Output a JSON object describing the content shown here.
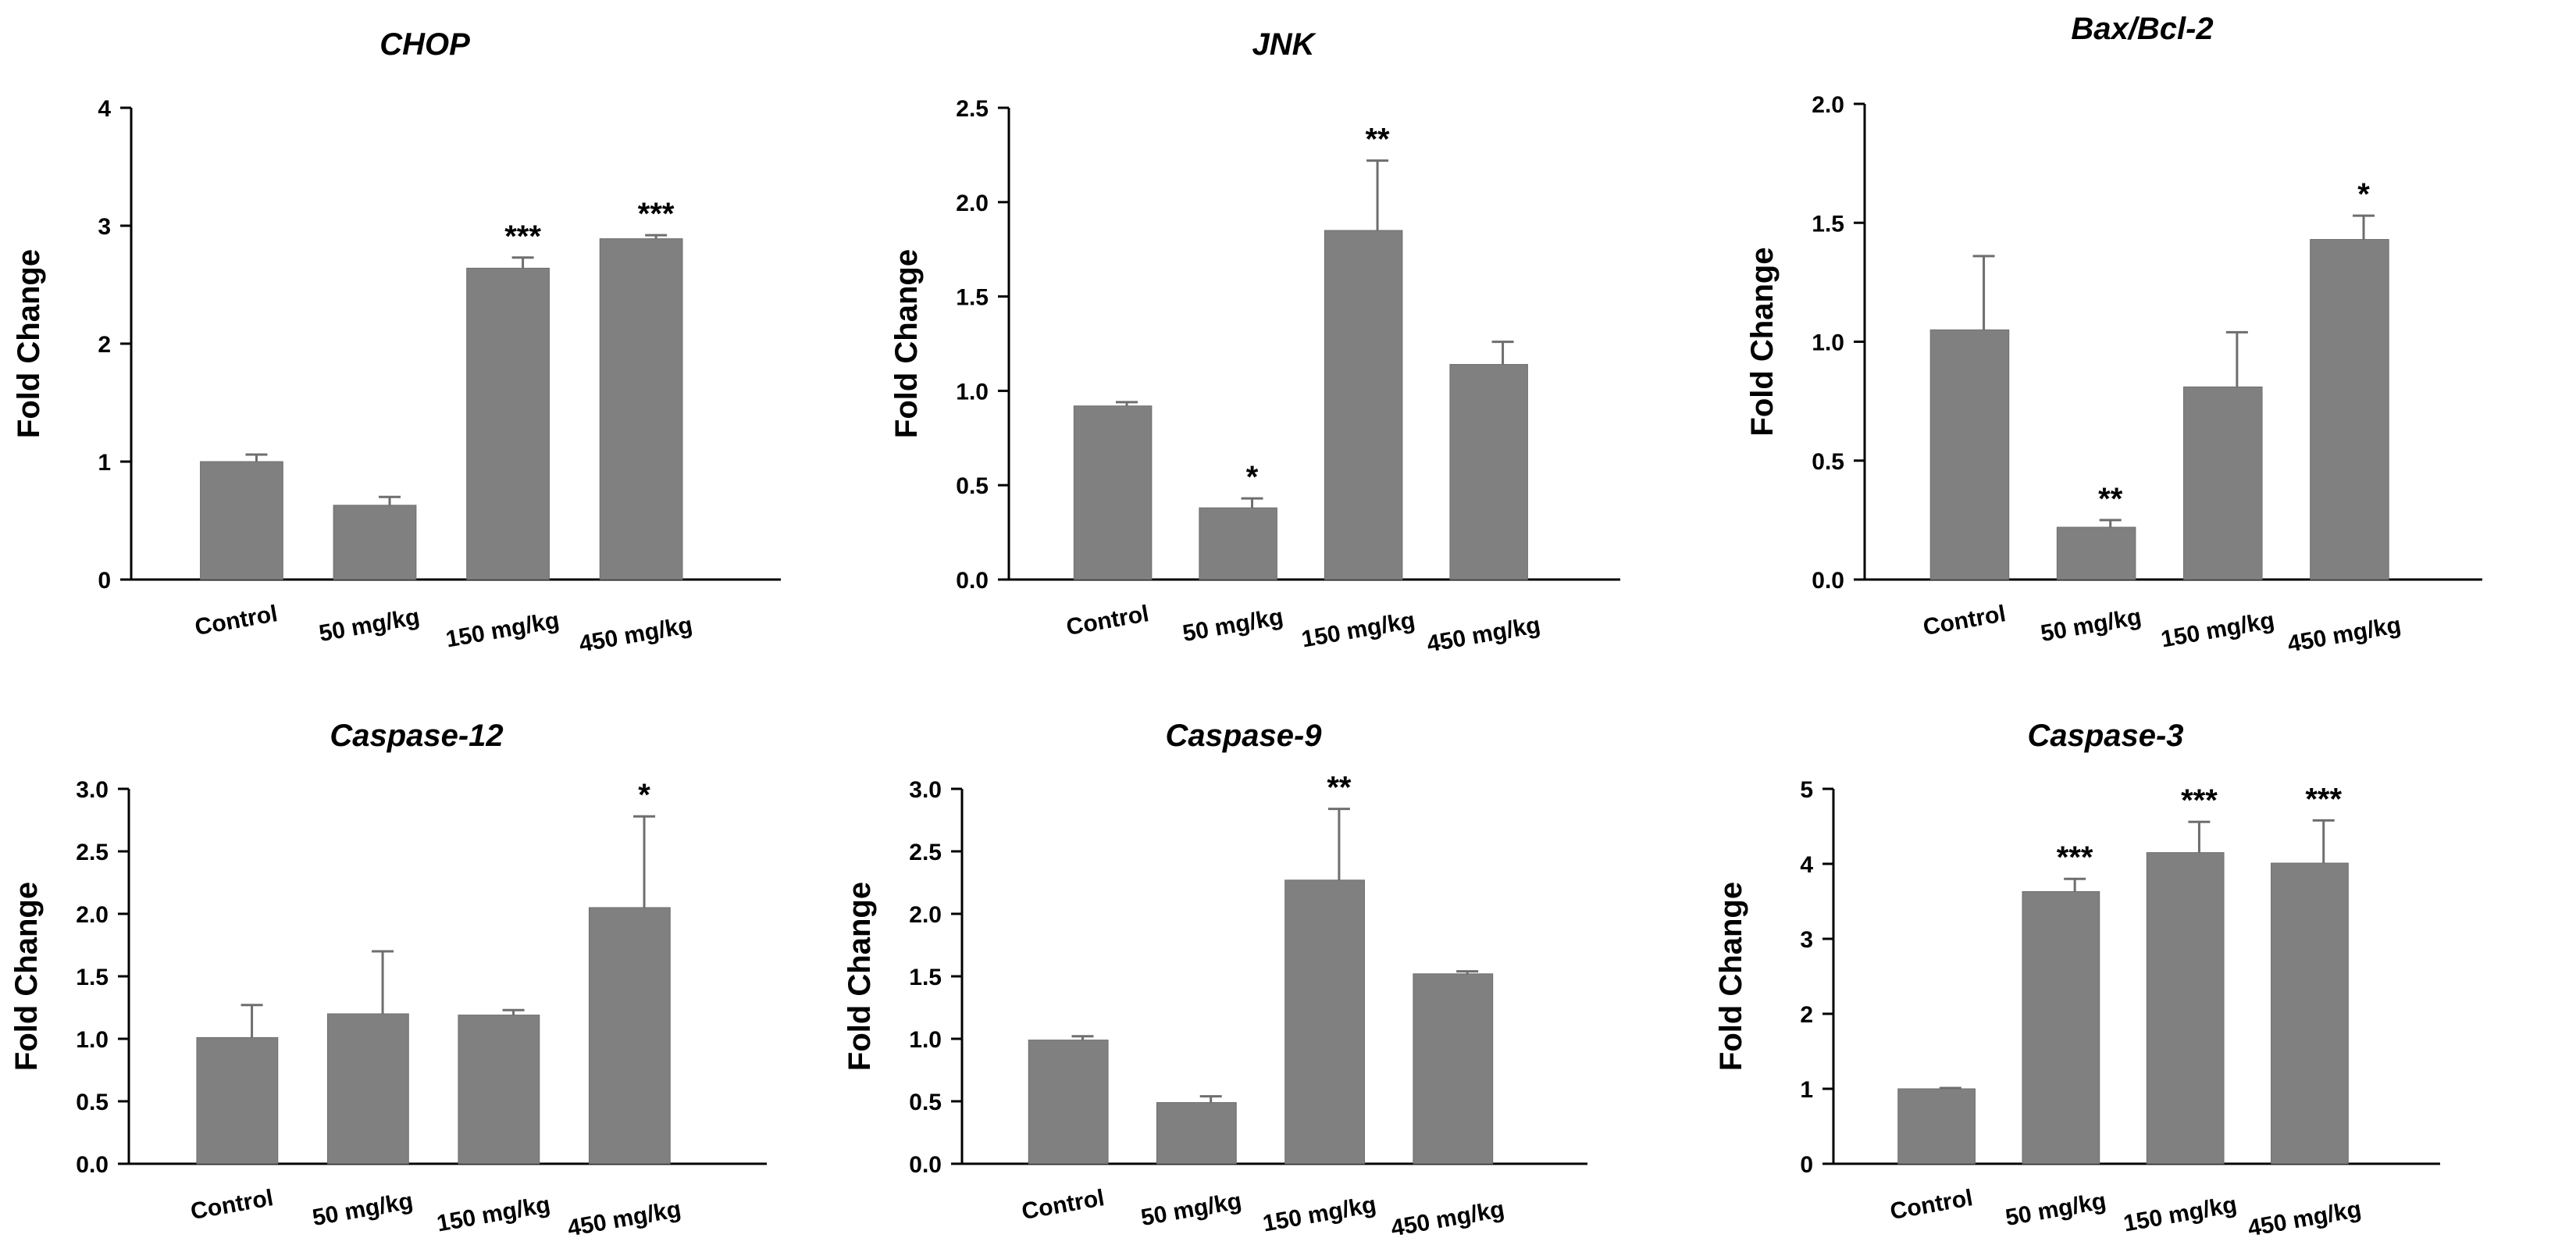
{
  "chart_data": [
    {
      "type": "bar",
      "title": "CHOP",
      "ylabel": "Fold Change",
      "xlabel": "",
      "categories": [
        "Control",
        "50 mg/kg",
        "150 mg/kg",
        "450 mg/kg"
      ],
      "values": [
        1.0,
        0.63,
        2.64,
        2.89
      ],
      "errors": [
        0.06,
        0.07,
        0.09,
        0.03
      ],
      "significance": [
        "",
        "",
        "***",
        "***"
      ],
      "ylim": [
        0,
        4
      ],
      "yticks": [
        "0",
        "1",
        "2",
        "3",
        "4"
      ],
      "color": "#808080"
    },
    {
      "type": "bar",
      "title": "JNK",
      "ylabel": "Fold Change",
      "xlabel": "",
      "categories": [
        "Control",
        "50 mg/kg",
        "150 mg/kg",
        "450 mg/kg"
      ],
      "values": [
        0.92,
        0.38,
        1.85,
        1.14
      ],
      "errors": [
        0.02,
        0.05,
        0.37,
        0.12
      ],
      "significance": [
        "",
        "*",
        "**",
        ""
      ],
      "ylim": [
        0,
        2.5
      ],
      "yticks": [
        "0.0",
        "0.5",
        "1.0",
        "1.5",
        "2.0",
        "2.5"
      ],
      "color": "#808080"
    },
    {
      "type": "bar",
      "title": "Bax/Bcl-2",
      "ylabel": "Fold Change",
      "xlabel": "",
      "categories": [
        "Control",
        "50 mg/kg",
        "150 mg/kg",
        "450 mg/kg"
      ],
      "values": [
        1.05,
        0.22,
        0.81,
        1.43
      ],
      "errors": [
        0.31,
        0.03,
        0.23,
        0.1
      ],
      "significance": [
        "",
        "**",
        "",
        "*"
      ],
      "ylim": [
        0,
        2.0
      ],
      "yticks": [
        "0.0",
        "0.5",
        "1.0",
        "1.5",
        "2.0"
      ],
      "color": "#808080"
    },
    {
      "type": "bar",
      "title": "Caspase-12",
      "ylabel": "Fold Change",
      "xlabel": "",
      "categories": [
        "Control",
        "50 mg/kg",
        "150 mg/kg",
        "450 mg/kg"
      ],
      "values": [
        1.01,
        1.2,
        1.19,
        2.05
      ],
      "errors": [
        0.26,
        0.5,
        0.04,
        0.73
      ],
      "significance": [
        "",
        "",
        "",
        "*"
      ],
      "ylim": [
        0,
        3.0
      ],
      "yticks": [
        "0.0",
        "0.5",
        "1.0",
        "1.5",
        "2.0",
        "2.5",
        "3.0"
      ],
      "color": "#808080"
    },
    {
      "type": "bar",
      "title": "Caspase-9",
      "ylabel": "Fold Change",
      "xlabel": "",
      "categories": [
        "Control",
        "50 mg/kg",
        "150 mg/kg",
        "450 mg/kg"
      ],
      "values": [
        0.99,
        0.49,
        2.27,
        1.52
      ],
      "errors": [
        0.03,
        0.05,
        0.57,
        0.02
      ],
      "significance": [
        "",
        "",
        "**",
        ""
      ],
      "ylim": [
        0,
        3.0
      ],
      "yticks": [
        "0.0",
        "0.5",
        "1.0",
        "1.5",
        "2.0",
        "2.5",
        "3.0"
      ],
      "color": "#808080"
    },
    {
      "type": "bar",
      "title": "Caspase-3",
      "ylabel": "Fold Change",
      "xlabel": "",
      "categories": [
        "Control",
        "50 mg/kg",
        "150 mg/kg",
        "450 mg/kg"
      ],
      "values": [
        1.0,
        3.63,
        4.15,
        4.01
      ],
      "errors": [
        0.01,
        0.17,
        0.41,
        0.57
      ],
      "significance": [
        "",
        "***",
        "***",
        "***"
      ],
      "ylim": [
        0,
        5
      ],
      "yticks": [
        "0",
        "1",
        "2",
        "3",
        "4",
        "5"
      ],
      "color": "#808080"
    }
  ]
}
